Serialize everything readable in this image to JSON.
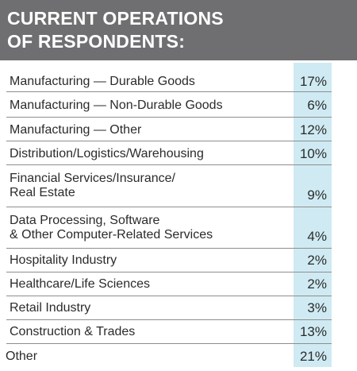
{
  "title": {
    "line1": "CURRENT OPERATIONS",
    "line2": "OF RESPONDENTS:"
  },
  "chart_data": {
    "type": "table",
    "title": "CURRENT OPERATIONS OF RESPONDENTS:",
    "rows": [
      {
        "label_lines": [
          "Manufacturing — Durable Goods"
        ],
        "value": "17%"
      },
      {
        "label_lines": [
          "Manufacturing — Non-Durable Goods"
        ],
        "value": "6%"
      },
      {
        "label_lines": [
          "Manufacturing — Other"
        ],
        "value": "12%"
      },
      {
        "label_lines": [
          "Distribution/Logistics/Warehousing"
        ],
        "value": "10%"
      },
      {
        "label_lines": [
          "Financial Services/Insurance/",
          "Real Estate"
        ],
        "value": "9%"
      },
      {
        "label_lines": [
          "Data Processing, Software",
          "& Other Computer-Related Services"
        ],
        "value": "4%"
      },
      {
        "label_lines": [
          "Hospitality Industry"
        ],
        "value": "2%"
      },
      {
        "label_lines": [
          "Healthcare/Life Sciences"
        ],
        "value": "2%"
      },
      {
        "label_lines": [
          "Retail Industry"
        ],
        "value": "3%"
      },
      {
        "label_lines": [
          "Construction & Trades"
        ],
        "value": "13%"
      },
      {
        "label_lines": [
          "Other"
        ],
        "value": "21%"
      }
    ]
  },
  "colors": {
    "header_background": "#6f6f71",
    "header_text": "#ffffff",
    "value_column_highlight": "#cfeaf2",
    "text": "#2b2b2b",
    "rule": "#8e8e8e"
  }
}
